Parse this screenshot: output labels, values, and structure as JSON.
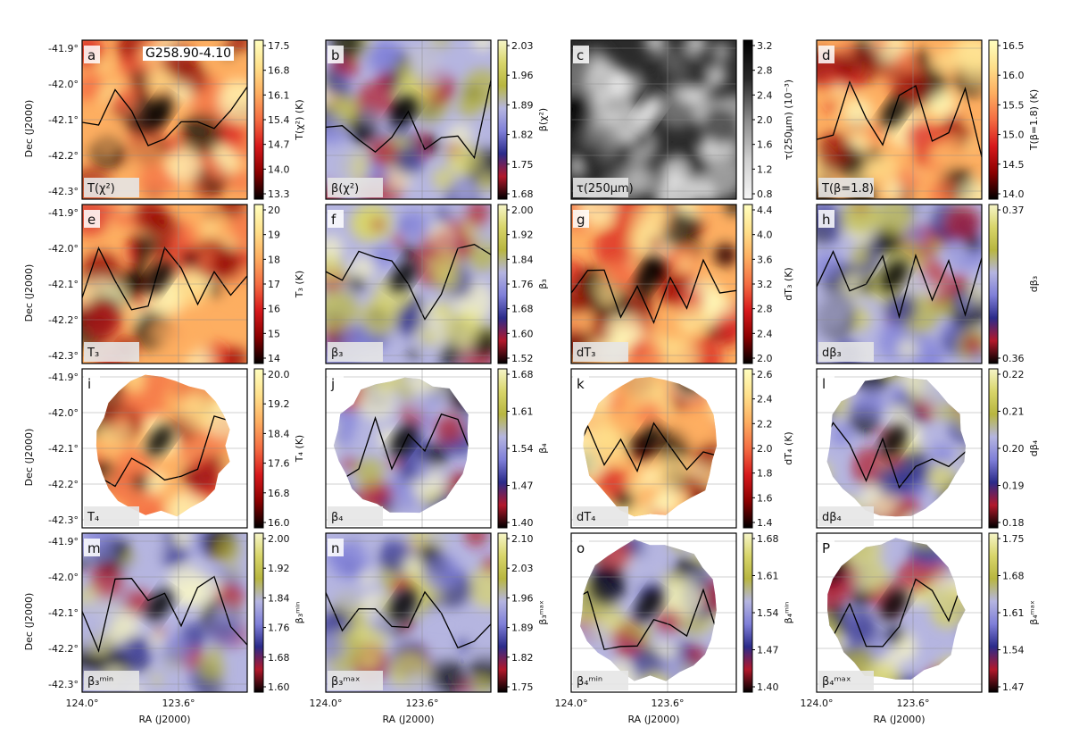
{
  "title": "G258.90-4.10",
  "axes": {
    "dec_label": "Dec (J2000)",
    "ra_label": "RA (J2000)",
    "dec_ticks": [
      "-41.9°",
      "-42.0°",
      "-42.1°",
      "-42.2°",
      "-42.3°"
    ],
    "ra_ticks": [
      "124.0°",
      "123.6°"
    ]
  },
  "colormaps": {
    "heat": [
      "#000000",
      "#8b0000",
      "#d7191c",
      "#f46d43",
      "#fdae61",
      "#fee08b",
      "#ffffbf"
    ],
    "beta": [
      "#000000",
      "#b2182b",
      "#2b2b8a",
      "#7f7fd8",
      "#b5b5e0",
      "#b8b640",
      "#d8d56a",
      "#f6f5c8"
    ],
    "gray": [
      "#f6f6f6",
      "#cfcfcf",
      "#8a8a8a",
      "#2b2b2b",
      "#000000"
    ]
  },
  "chart_data": [
    {
      "id": "a",
      "type": "heatmap",
      "cmap": "heat",
      "label": "T(χ²)",
      "colorbar_label": "T(χ²) (K)",
      "ticks": [
        "13.3",
        "14.0",
        "14.7",
        "15.4",
        "16.1",
        "16.8",
        "17.5"
      ]
    },
    {
      "id": "b",
      "type": "heatmap",
      "cmap": "beta",
      "label": "β(χ²)",
      "colorbar_label": "β(χ²)",
      "ticks": [
        "1.68",
        "1.75",
        "1.82",
        "1.89",
        "1.96",
        "2.03"
      ]
    },
    {
      "id": "c",
      "type": "heatmap",
      "cmap": "gray",
      "label": "τ(250μm)",
      "colorbar_label": "τ(250μm) (10⁻³)",
      "ticks": [
        "0.8",
        "1.2",
        "1.6",
        "2.0",
        "2.4",
        "2.8",
        "3.2"
      ]
    },
    {
      "id": "d",
      "type": "heatmap",
      "cmap": "heat",
      "label": "T(β=1.8)",
      "colorbar_label": "T(β=1.8) (K)",
      "ticks": [
        "14.0",
        "14.5",
        "15.0",
        "15.5",
        "16.0",
        "16.5"
      ]
    },
    {
      "id": "e",
      "type": "heatmap",
      "cmap": "heat",
      "label": "T₃",
      "colorbar_label": "T₃ (K)",
      "ticks": [
        "14",
        "15",
        "16",
        "17",
        "18",
        "19",
        "20"
      ]
    },
    {
      "id": "f",
      "type": "heatmap",
      "cmap": "beta",
      "label": "β₃",
      "colorbar_label": "β₃",
      "ticks": [
        "1.52",
        "1.60",
        "1.68",
        "1.76",
        "1.84",
        "1.92",
        "2.00"
      ]
    },
    {
      "id": "g",
      "type": "heatmap",
      "cmap": "heat",
      "label": "dT₃",
      "colorbar_label": "dT₃ (K)",
      "ticks": [
        "2.0",
        "2.4",
        "2.8",
        "3.2",
        "3.6",
        "4.0",
        "4.4"
      ]
    },
    {
      "id": "h",
      "type": "heatmap",
      "cmap": "beta",
      "label": "dβ₃",
      "colorbar_label": "dβ₃",
      "ticks": [
        "0.36",
        "0.37"
      ]
    },
    {
      "id": "i",
      "type": "heatmap",
      "cmap": "heat",
      "label": "T₄",
      "colorbar_label": "T₄ (K)",
      "ticks": [
        "16.0",
        "16.8",
        "17.6",
        "18.4",
        "19.2",
        "20.0"
      ]
    },
    {
      "id": "j",
      "type": "heatmap",
      "cmap": "beta",
      "label": "β₄",
      "colorbar_label": "β₄",
      "ticks": [
        "1.40",
        "1.47",
        "1.54",
        "1.61",
        "1.68"
      ]
    },
    {
      "id": "k",
      "type": "heatmap",
      "cmap": "heat",
      "label": "dT₄",
      "colorbar_label": "dT₄ (K)",
      "ticks": [
        "1.4",
        "1.6",
        "1.8",
        "2.0",
        "2.2",
        "2.4",
        "2.6"
      ]
    },
    {
      "id": "l",
      "type": "heatmap",
      "cmap": "beta",
      "label": "dβ₄",
      "colorbar_label": "dβ₄",
      "ticks": [
        "0.18",
        "0.19",
        "0.20",
        "0.21",
        "0.22"
      ]
    },
    {
      "id": "m",
      "type": "heatmap",
      "cmap": "beta",
      "label": "β₃ᵐⁱⁿ",
      "colorbar_label": "β₃ᵐⁱⁿ",
      "ticks": [
        "1.60",
        "1.68",
        "1.76",
        "1.84",
        "1.92",
        "2.00"
      ]
    },
    {
      "id": "n",
      "type": "heatmap",
      "cmap": "beta",
      "label": "β₃ᵐᵃˣ",
      "colorbar_label": "β₃ᵐᵃˣ",
      "ticks": [
        "1.75",
        "1.82",
        "1.89",
        "1.96",
        "2.03",
        "2.10"
      ]
    },
    {
      "id": "o",
      "type": "heatmap",
      "cmap": "beta",
      "label": "β₄ᵐⁱⁿ",
      "colorbar_label": "β₄ᵐⁱⁿ",
      "ticks": [
        "1.40",
        "1.47",
        "1.54",
        "1.61",
        "1.68"
      ]
    },
    {
      "id": "P",
      "type": "heatmap",
      "cmap": "beta",
      "label": "β₄ᵐᵃˣ",
      "colorbar_label": "β₄ᵐᵃˣ",
      "ticks": [
        "1.47",
        "1.54",
        "1.61",
        "1.68",
        "1.75"
      ]
    }
  ]
}
